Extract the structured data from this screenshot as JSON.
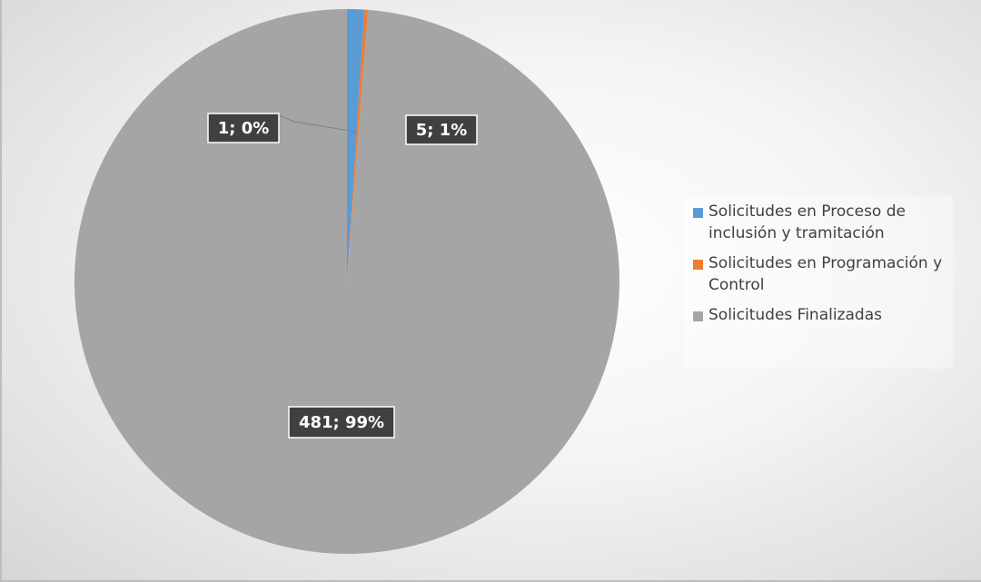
{
  "chart_data": {
    "type": "pie",
    "title": "",
    "categories": [
      "Solicitudes en Proceso de inclusión y tramitación",
      "Solicitudes en Programación y Control",
      "Solicitudes Finalizadas"
    ],
    "values": [
      5,
      1,
      481
    ],
    "data_labels": [
      "5; 1%",
      "1; 0%",
      "481; 99%"
    ],
    "colors": [
      "#5b9bd5",
      "#ed7d31",
      "#a5a5a5"
    ],
    "legend_position": "right",
    "start_angle_deg": 0,
    "direction": "clockwise"
  }
}
